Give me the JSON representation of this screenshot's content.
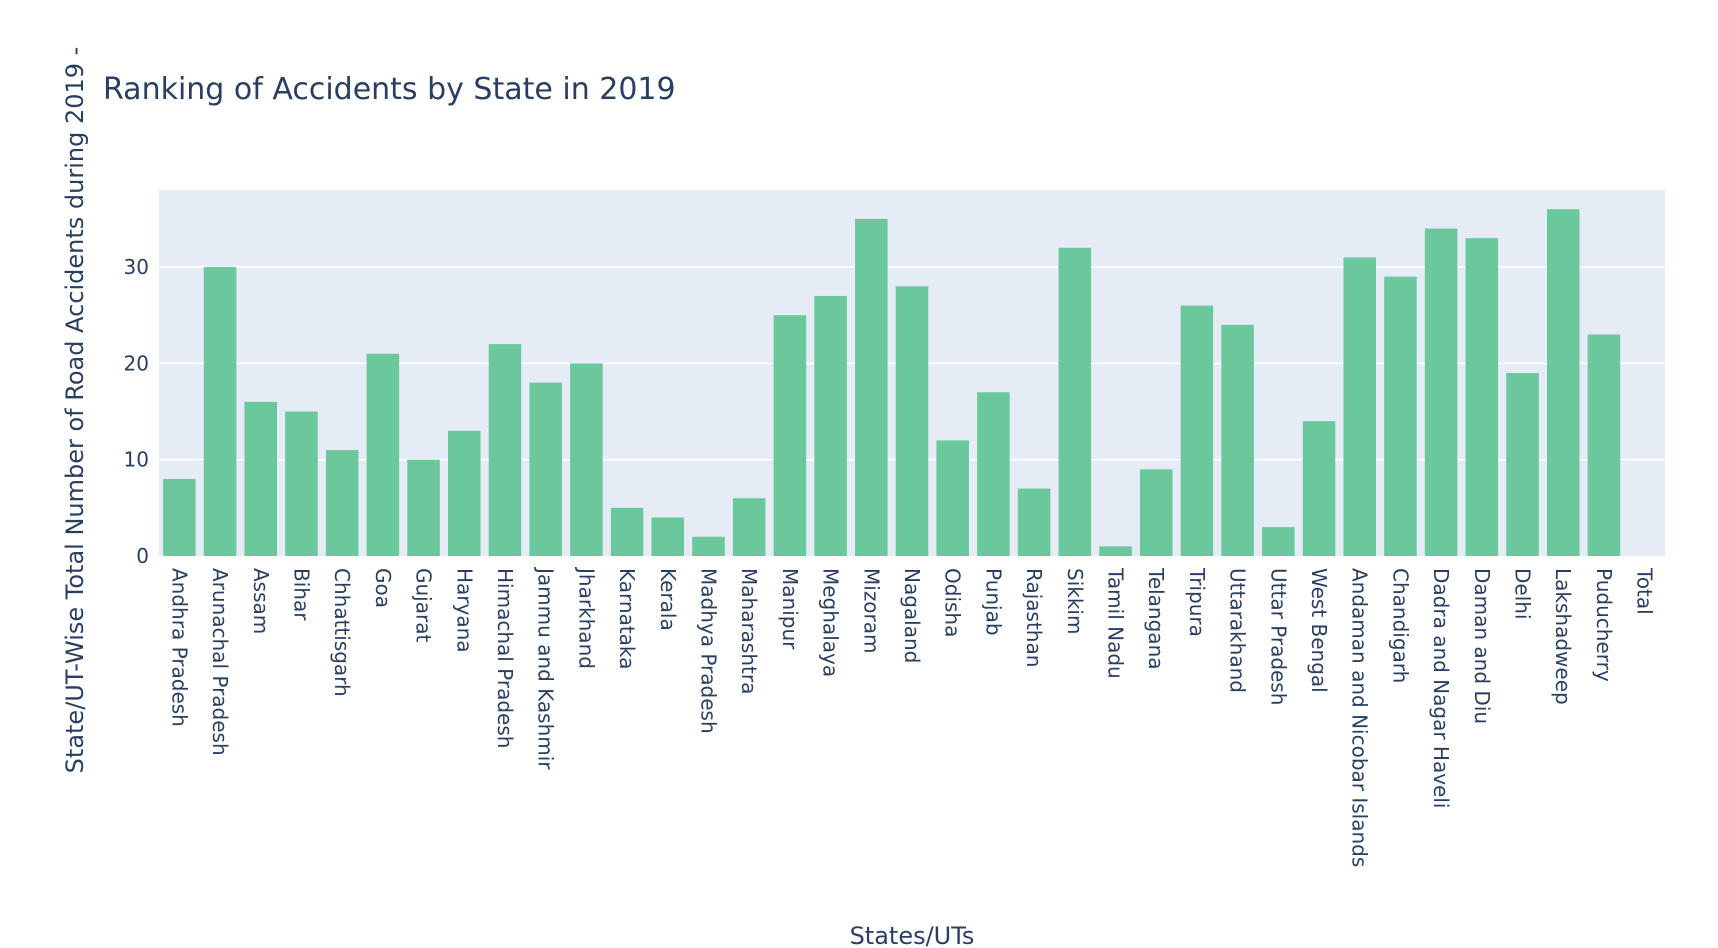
{
  "chart_data": {
    "type": "bar",
    "title": "Ranking of Accidents by State in 2019",
    "xlabel": "States/UTs",
    "ylabel": "State/UT-Wise Total Number of Road Accidents during 2019 -",
    "ylim": [
      0,
      38
    ],
    "yticks": [
      0,
      10,
      20,
      30
    ],
    "grid": true,
    "bar_color": "#6bc89c",
    "plot_bg": "#e5ecf6",
    "text_color": "#2a3f5f",
    "categories": [
      "Andhra Pradesh",
      "Arunachal Pradesh",
      "Assam",
      "Bihar",
      "Chhattisgarh",
      "Goa",
      "Gujarat",
      "Haryana",
      "Himachal Pradesh",
      "Jammu and Kashmir",
      "Jharkhand",
      "Karnataka",
      "Kerala",
      "Madhya Pradesh",
      "Maharashtra",
      "Manipur",
      "Meghalaya",
      "Mizoram",
      "Nagaland",
      "Odisha",
      "Punjab",
      "Rajasthan",
      "Sikkim",
      "Tamil Nadu",
      "Telangana",
      "Tripura",
      "Uttarakhand",
      "Uttar Pradesh",
      "West Bengal",
      "Andaman and Nicobar Islands",
      "Chandigarh",
      "Dadra and Nagar Haveli",
      "Daman and Diu",
      "Delhi",
      "Lakshadweep",
      "Puducherry",
      "Total"
    ],
    "values": [
      8,
      30,
      16,
      15,
      11,
      21,
      10,
      13,
      22,
      18,
      20,
      5,
      4,
      2,
      6,
      25,
      27,
      35,
      28,
      12,
      17,
      7,
      32,
      1,
      9,
      26,
      24,
      3,
      14,
      31,
      29,
      34,
      33,
      19,
      36,
      23,
      0
    ]
  }
}
